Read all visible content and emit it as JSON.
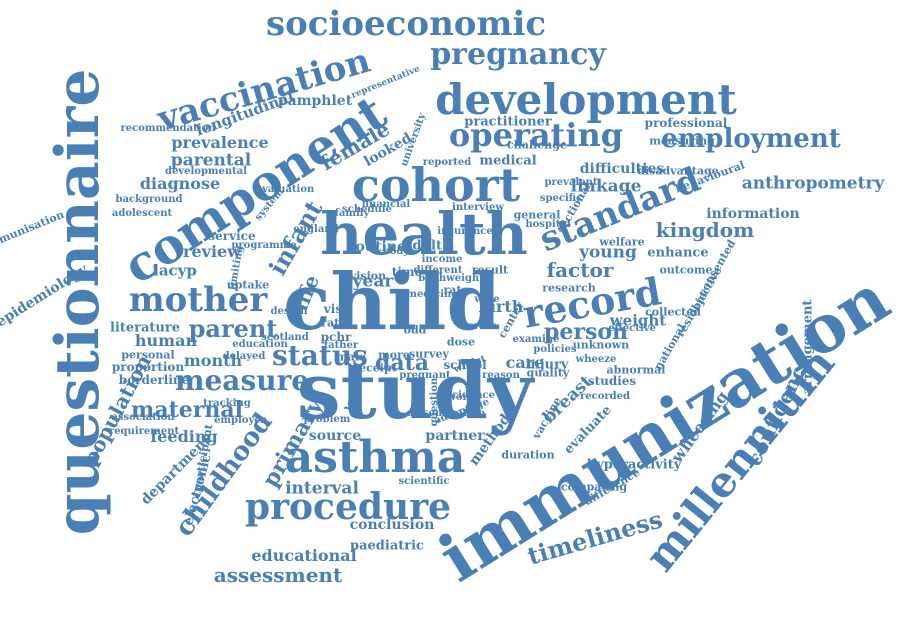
{
  "word_color": "#4a7fb5",
  "background_color": "#ffffff",
  "words": [
    "study",
    "child",
    "immunization",
    "health",
    "questionnaire",
    "cohort",
    "component",
    "millennium",
    "development",
    "asthma",
    "mother",
    "record",
    "procedure",
    "socioeconomic",
    "vaccination",
    "standard",
    "operating",
    "pregnancy",
    "measure",
    "employment",
    "status",
    "parent",
    "childhood",
    "infant",
    "data",
    "factor",
    "maternal",
    "person",
    "anthropometry",
    "timeliness",
    "kingdom",
    "assessment",
    "educational",
    "confidence",
    "primary",
    "interval",
    "population",
    "life",
    "female",
    "wheezing",
    "breast",
    "year",
    "birth",
    "young",
    "linkage",
    "review",
    "prevalence",
    "parental",
    "diagnose",
    "longitudinal",
    "pamphlet",
    "information",
    "epidemiology",
    "immunisation",
    "department",
    "feeding",
    "human",
    "lacyp",
    "conclusion",
    "paediatric",
    "source",
    "partner",
    "care",
    "month",
    "weight",
    "difficulties",
    "looked",
    "routine",
    "adult",
    "medical",
    "enhance",
    "professional",
    "practitioner",
    "arrangement",
    "electronic",
    "literature",
    "personal",
    "proportion",
    "borderline",
    "service",
    "uptake",
    "time",
    "result",
    "research",
    "outcome",
    "studies",
    "hyperactivity",
    "comparing",
    "difference",
    "school",
    "method",
    "vaccine",
    "injury",
    "general",
    "welfare",
    "evaluate",
    "abnormal",
    "national",
    "quality",
    "dose",
    "survey",
    "receipt",
    "male",
    "more",
    "leave",
    "scientific",
    "duration",
    "advantage",
    "ratio",
    "pchr",
    "visit",
    "vision",
    "rate",
    "sectional",
    "hospital",
    "behavioural",
    "disadvantage",
    "measuring",
    "prevalent",
    "specific",
    "reported",
    "challenge",
    "recommendation",
    "developmental",
    "background",
    "adolescent",
    "representative",
    "tracking",
    "requirement",
    "association",
    "employer",
    "participant",
    "programme",
    "system",
    "evaluation",
    "objective",
    "resident",
    "collected",
    "consented",
    "recorded",
    "effective",
    "unknown",
    "center",
    "cross",
    "wale",
    "odd",
    "body",
    "education",
    "delayed",
    "scotland",
    "father",
    "england",
    "financial",
    "schedule",
    "family",
    "interview",
    "insurance",
    "income",
    "different",
    "limiting",
    "design",
    "question",
    "problem",
    "work",
    "pregnant",
    "birthweight",
    "reason",
    "incidence",
    "whilst",
    "wheeze",
    "policies",
    "examine",
    "dissemination",
    "medicine",
    "university"
  ]
}
